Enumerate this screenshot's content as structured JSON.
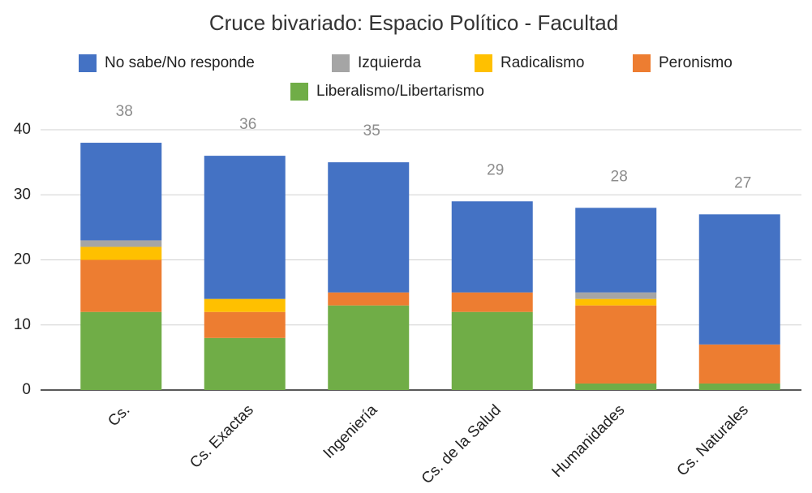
{
  "chart_data": {
    "type": "stacked_bar",
    "title": "Cruce bivariado: Espacio Político - Facultad",
    "categories": [
      "Cs.",
      "Cs. Exactas",
      "Ingeniería",
      "Cs. de la Salud",
      "Humanidades",
      "Cs. Naturales"
    ],
    "series": [
      {
        "name": "No sabe/No responde",
        "color": "#4472c4",
        "values": [
          15,
          22,
          20,
          14,
          13,
          20
        ]
      },
      {
        "name": "Izquierda",
        "color": "#a5a5a5",
        "values": [
          1,
          0,
          0,
          0,
          1,
          0
        ]
      },
      {
        "name": "Radicalismo",
        "color": "#ffc000",
        "values": [
          2,
          2,
          0,
          0,
          1,
          0
        ]
      },
      {
        "name": "Peronismo",
        "color": "#ed7d31",
        "values": [
          8,
          4,
          2,
          3,
          12,
          6
        ]
      },
      {
        "name": "Liberalismo/Libertarismo",
        "color": "#70ad47",
        "values": [
          12,
          8,
          13,
          12,
          1,
          1
        ]
      }
    ],
    "totals": [
      38,
      36,
      35,
      29,
      28,
      27
    ],
    "ylim": [
      0,
      40
    ],
    "yticks": [
      0,
      10,
      20,
      30,
      40
    ],
    "grid": true
  }
}
